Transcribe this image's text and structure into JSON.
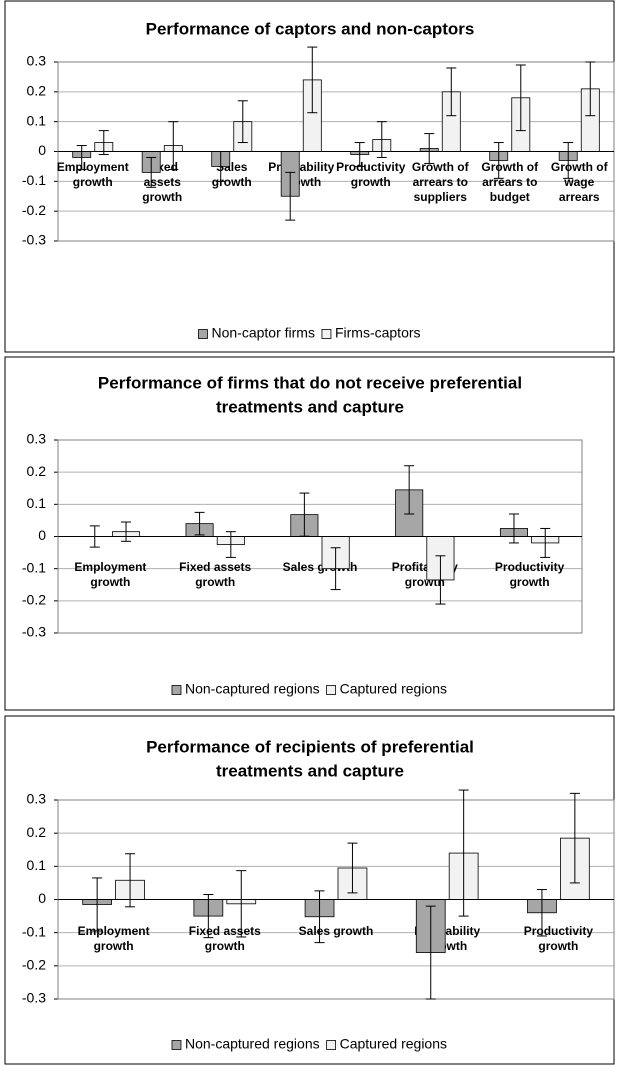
{
  "chart_data": [
    {
      "type": "bar",
      "title": "Performance of captors and non-captors",
      "categories": [
        [
          "Employment",
          "growth"
        ],
        [
          "Fixed",
          "assets",
          "growth"
        ],
        [
          "Sales",
          "growth"
        ],
        [
          "Profitability",
          "growth"
        ],
        [
          "Productivity",
          "growth"
        ],
        [
          "Growth of",
          "arrears to",
          "suppliers"
        ],
        [
          "Growth of",
          "arrears to",
          "budget"
        ],
        [
          "Growth of",
          "wage",
          "arrears"
        ]
      ],
      "series": [
        {
          "name": "Non-captor firms",
          "color": "#a6a6a6",
          "values": [
            -0.02,
            -0.07,
            -0.05,
            -0.15,
            -0.01,
            0.01,
            -0.03,
            -0.03
          ],
          "errors": [
            0.04,
            0.05,
            0.05,
            0.08,
            0.04,
            0.05,
            0.06,
            0.06
          ]
        },
        {
          "name": "Firms-captors",
          "color": "#f2f2f2",
          "values": [
            0.03,
            0.02,
            0.1,
            0.24,
            0.04,
            0.2,
            0.18,
            0.21
          ],
          "errors": [
            0.04,
            0.08,
            0.07,
            0.11,
            0.06,
            0.08,
            0.11,
            0.09
          ]
        }
      ],
      "ylim": [
        -0.3,
        0.3
      ],
      "yticks": [
        0.3,
        0.2,
        0.1,
        0,
        -0.1,
        -0.2,
        -0.3
      ],
      "grid": true,
      "legend": "bottom"
    },
    {
      "type": "bar",
      "title": [
        "Performance of firms that do not receive preferential",
        "treatments and capture"
      ],
      "categories": [
        [
          "Employment",
          "growth"
        ],
        [
          "Fixed assets",
          "growth"
        ],
        [
          "Sales growth"
        ],
        [
          "Profitability",
          "growth"
        ],
        [
          "Productivity",
          "growth"
        ]
      ],
      "series": [
        {
          "name": "Non-captured regions",
          "color": "#a6a6a6",
          "values": [
            0.0,
            0.04,
            0.068,
            0.145,
            0.025
          ],
          "errors": [
            0.033,
            0.035,
            0.067,
            0.075,
            0.045
          ]
        },
        {
          "name": "Captured regions",
          "color": "#f2f2f2",
          "values": [
            0.015,
            -0.025,
            -0.1,
            -0.135,
            -0.02
          ],
          "errors": [
            0.03,
            0.04,
            0.065,
            0.075,
            0.045
          ]
        }
      ],
      "ylim": [
        -0.3,
        0.3
      ],
      "yticks": [
        0.3,
        0.2,
        0.1,
        0,
        -0.1,
        -0.2,
        -0.3
      ],
      "grid": true,
      "legend": "bottom"
    },
    {
      "type": "bar",
      "title": [
        "Performance of recipients of preferential",
        "treatments and capture"
      ],
      "categories": [
        [
          "Employment",
          "growth"
        ],
        [
          "Fixed assets",
          "growth"
        ],
        [
          "Sales growth"
        ],
        [
          "Profitability",
          "growth"
        ],
        [
          "Productivity",
          "growth"
        ]
      ],
      "series": [
        {
          "name": "Non-captured regions",
          "color": "#a6a6a6",
          "values": [
            -0.015,
            -0.05,
            -0.052,
            -0.16,
            -0.04
          ],
          "errors": [
            0.08,
            0.065,
            0.078,
            0.14,
            0.07
          ]
        },
        {
          "name": "Captured regions",
          "color": "#f2f2f2",
          "values": [
            0.058,
            -0.013,
            0.095,
            0.14,
            0.185
          ],
          "errors": [
            0.08,
            0.1,
            0.075,
            0.19,
            0.135
          ]
        }
      ],
      "ylim": [
        -0.3,
        0.3
      ],
      "yticks": [
        0.3,
        0.2,
        0.1,
        0,
        -0.1,
        -0.2,
        -0.3
      ],
      "grid": true,
      "legend": "bottom"
    }
  ]
}
